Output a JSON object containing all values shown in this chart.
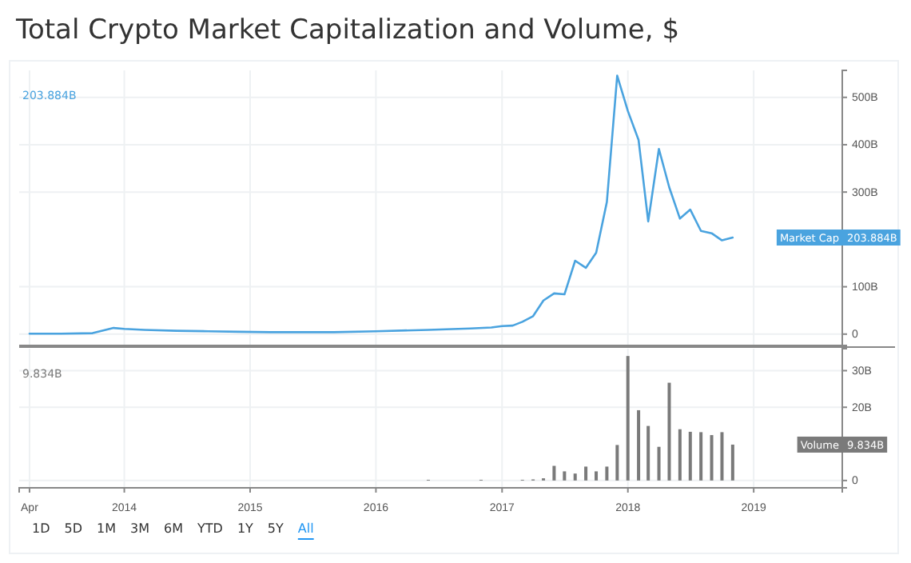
{
  "chart_data": [
    {
      "type": "line",
      "title": "Total Crypto Market Capitalization and Volume, $",
      "series": [
        {
          "name": "Market Cap",
          "color": "#4aa3df",
          "x": [
            "2013-04",
            "2013-07",
            "2013-10",
            "2013-12",
            "2014-01",
            "2014-03",
            "2014-06",
            "2014-09",
            "2014-12",
            "2015-03",
            "2015-06",
            "2015-09",
            "2016-01",
            "2016-06",
            "2016-10",
            "2016-12",
            "2017-01",
            "2017-02",
            "2017-03",
            "2017-04",
            "2017-05",
            "2017-06",
            "2017-07",
            "2017-08",
            "2017-09",
            "2017-10",
            "2017-11",
            "2017-12",
            "2018-01",
            "2018-02",
            "2018-03",
            "2018-04",
            "2018-05",
            "2018-06",
            "2018-07",
            "2018-08",
            "2018-09",
            "2018-10",
            "2018-11"
          ],
          "values": [
            1,
            1,
            2,
            13,
            11,
            9,
            7,
            6,
            5,
            4,
            4,
            4,
            6,
            9,
            12,
            14,
            17,
            18,
            26,
            38,
            71,
            86,
            84,
            155,
            140,
            172,
            279,
            546,
            471,
            410,
            238,
            391,
            310,
            244,
            263,
            218,
            213,
            198,
            204
          ]
        }
      ],
      "xlim": [
        "2013-03-02",
        "2019-09-15"
      ],
      "xticks": [
        {
          "value": "2013-04-01",
          "label": null
        },
        {
          "value": "2014-01-01",
          "label": null
        },
        {
          "value": "2015-01-01",
          "label": null
        },
        {
          "value": "2016-01-01",
          "label": null
        },
        {
          "value": "2017-01-01",
          "label": null
        },
        {
          "value": "2018-01-01",
          "label": null
        },
        {
          "value": "2019-01-01",
          "label": null
        }
      ],
      "ylim": [
        -24,
        557
      ],
      "yticks": [
        0,
        {
          "value": 100,
          "label": "100B"
        },
        {
          "value": 300,
          "label": "300B"
        },
        {
          "value": 400,
          "label": "400B"
        },
        {
          "value": 500,
          "label": "500B"
        }
      ],
      "grid": true,
      "tick_labels": "y",
      "annotations": [
        "203.884B",
        "203.884B"
      ]
    },
    {
      "type": "bar",
      "series": [
        {
          "name": "Volume",
          "color": "#7a7a7a",
          "x": [
            "2016-06",
            "2016-11",
            "2017-03",
            "2017-04",
            "2017-05",
            "2017-06",
            "2017-07",
            "2017-08",
            "2017-09",
            "2017-10",
            "2017-11",
            "2017-12",
            "2018-01",
            "2018-02",
            "2018-03",
            "2018-04",
            "2018-05",
            "2018-06",
            "2018-07",
            "2018-08",
            "2018-09",
            "2018-10",
            "2018-11"
          ],
          "values": [
            0.2,
            0.2,
            0.2,
            0.3,
            0.6,
            4,
            2.5,
            1.9,
            3.8,
            2.5,
            3.8,
            9.7,
            34,
            19.2,
            14.9,
            9.2,
            26.7,
            14,
            13.3,
            13.2,
            12.4,
            13.2,
            9.8
          ]
        }
      ],
      "xlim": [
        "2013-03-02",
        "2019-09-15"
      ],
      "xticks": [
        {
          "value": "2013-04-01",
          "label": "Apr"
        },
        {
          "value": "2014-01-01",
          "label": "2014"
        },
        {
          "value": "2015-01-01",
          "label": "2015"
        },
        {
          "value": "2016-01-01",
          "label": "2016"
        },
        {
          "value": "2017-01-01",
          "label": "2017"
        },
        {
          "value": "2018-01-01",
          "label": "2018"
        },
        {
          "value": "2019-01-01",
          "label": "2019"
        }
      ],
      "ylim": [
        -2,
        36
      ],
      "yticks": [
        0,
        {
          "value": 20,
          "label": "20B"
        },
        {
          "value": 30,
          "label": "30B"
        }
      ],
      "grid": true,
      "annotations": [
        "9.834B",
        "9.834B",
        "1D",
        "5D",
        "1M",
        "3M",
        "6M",
        "YTD",
        "1Y",
        "5Y",
        "All"
      ]
    }
  ]
}
